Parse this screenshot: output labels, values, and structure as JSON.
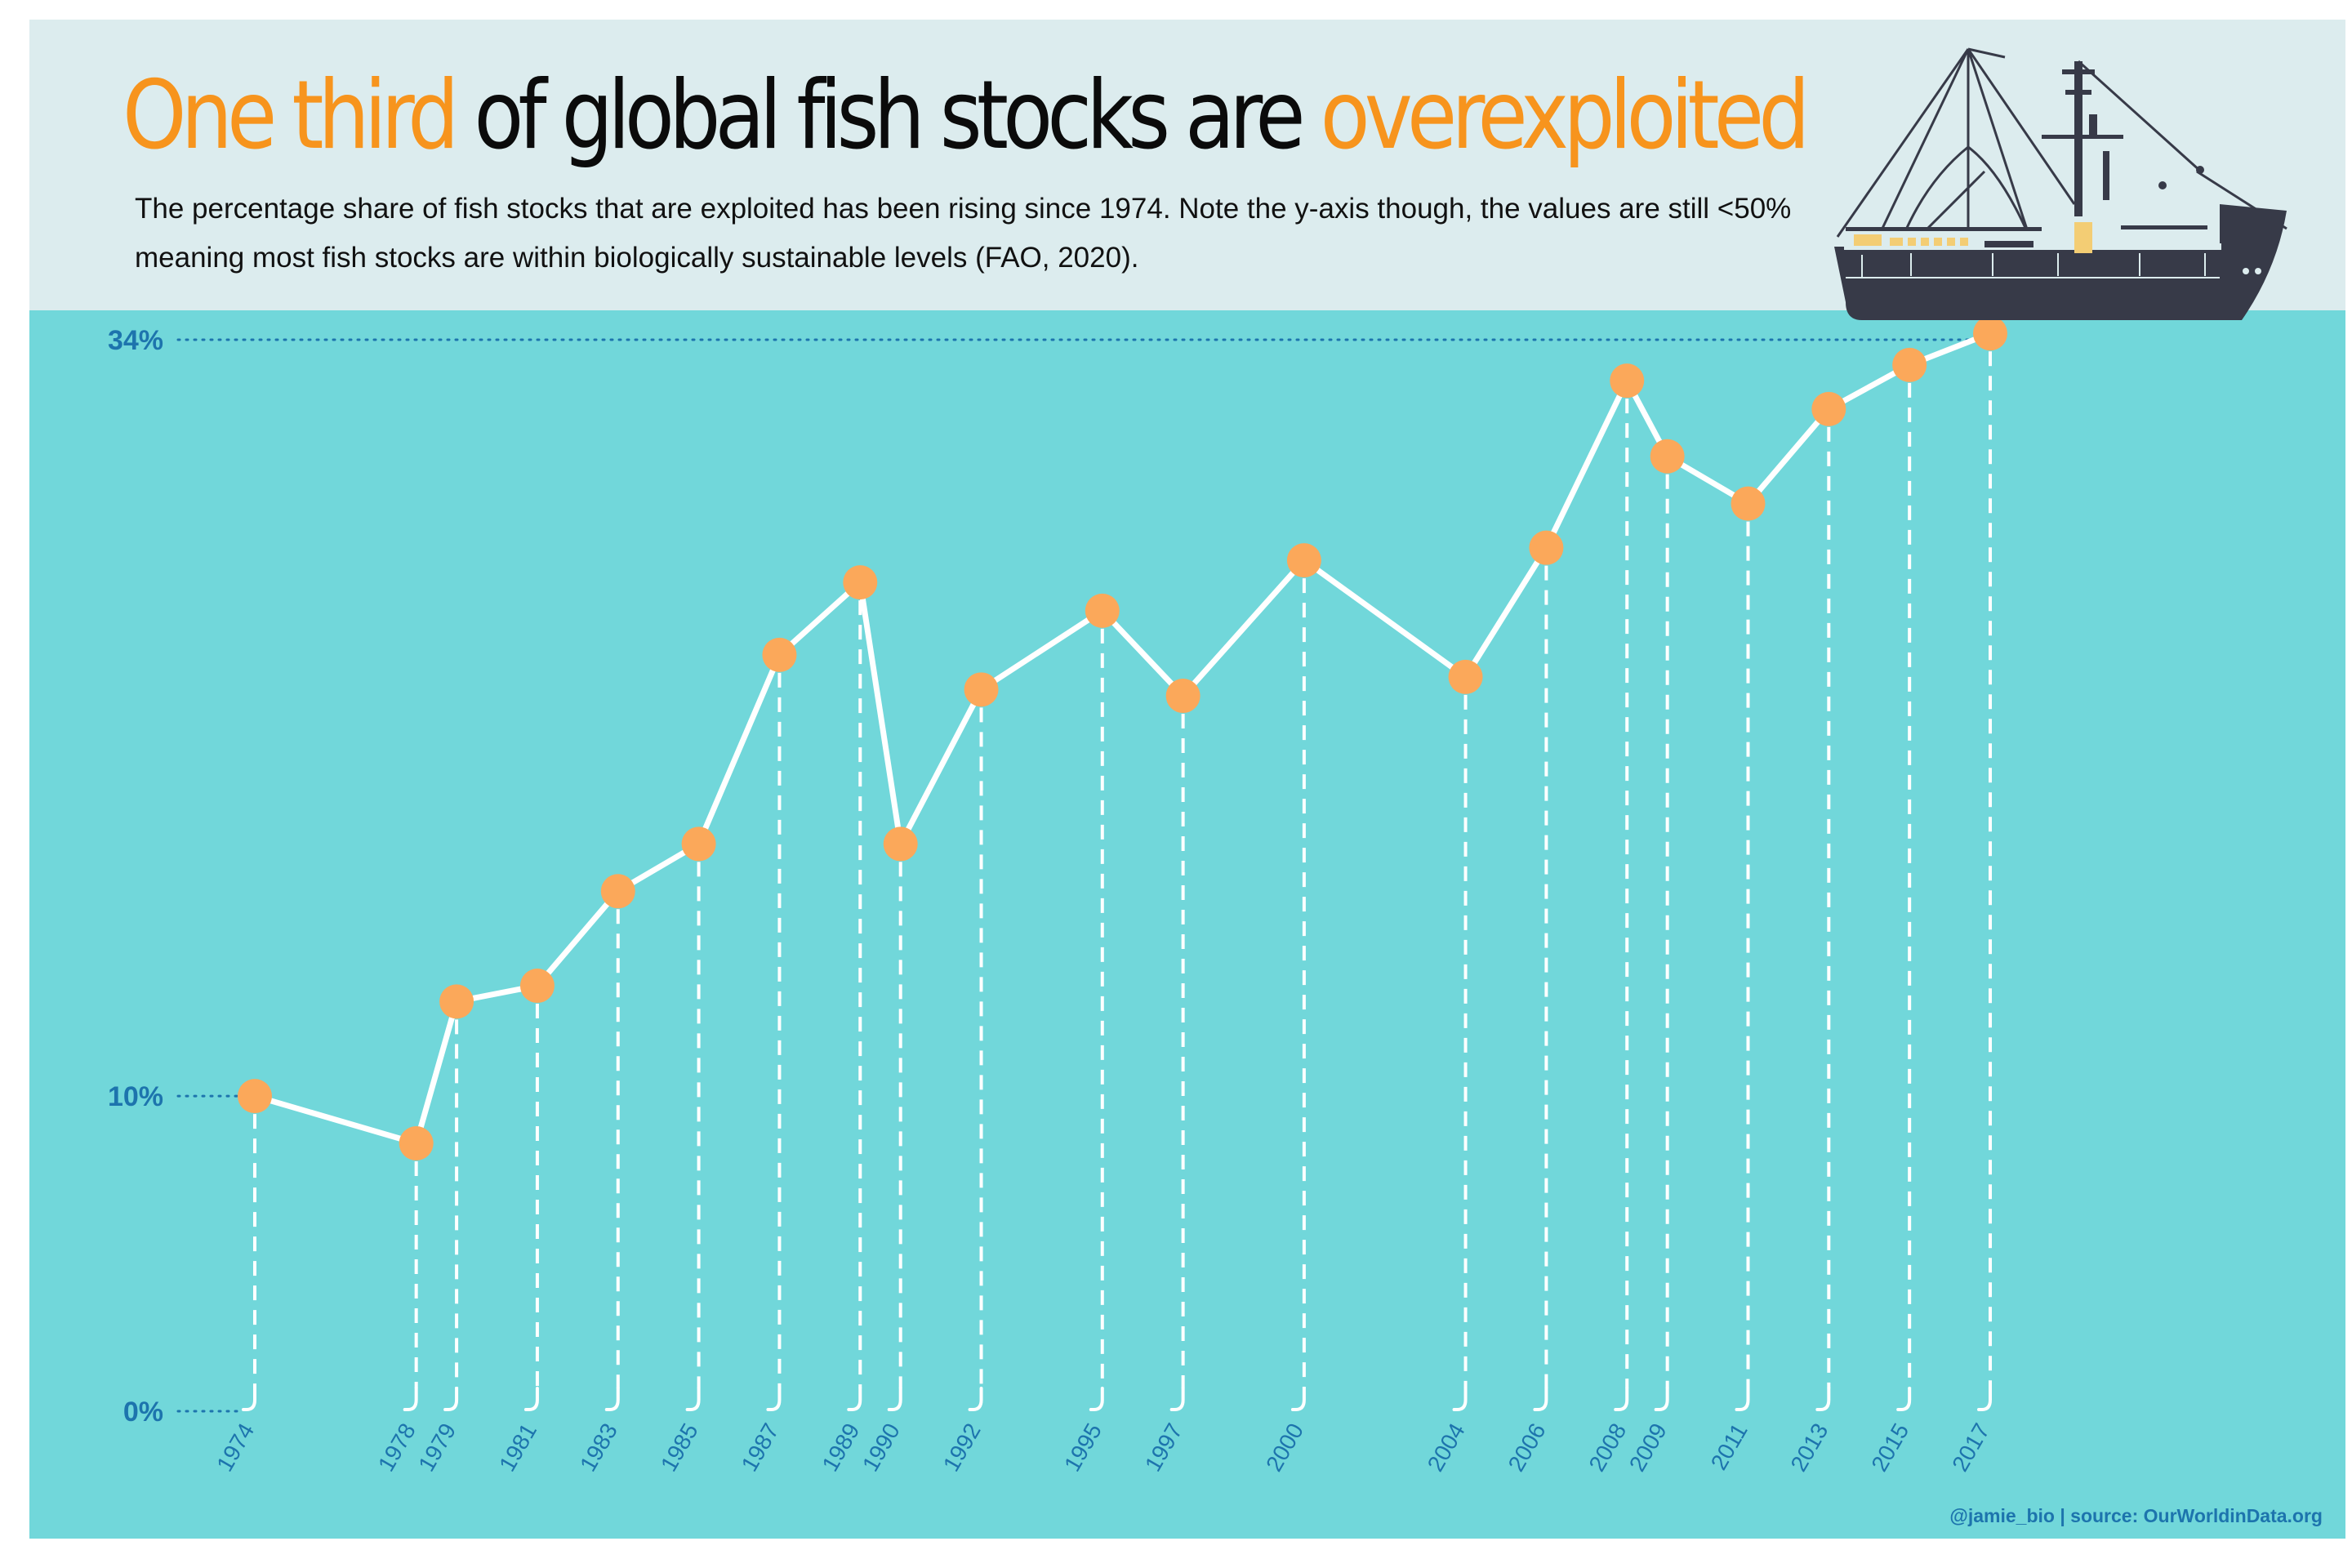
{
  "title": {
    "part1": "One third",
    "part2": " of global fish stocks are ",
    "part3": "overexploited"
  },
  "subtitle": "The percentage share of fish stocks that are exploited has been rising since 1974. Note the y-axis though, the values are still <50% meaning most fish stocks are within biologically sustainable levels (FAO, 2020).",
  "source": "@jamie_bio | source: OurWorldinData.org",
  "colors": {
    "header_bg": "#dcecee",
    "sea_bg": "#71d7da",
    "highlight": "#f7941d",
    "point": "#fba85a",
    "line": "#ffffff",
    "axis_text": "#1d74ad",
    "boat_hull": "#373a48",
    "boat_cabin": "#dcecee",
    "boat_accent": "#f3cd74"
  },
  "illustration": "fishing-boat-icon",
  "chart_data": {
    "type": "line",
    "x": [
      1974,
      1978,
      1979,
      1981,
      1983,
      1985,
      1987,
      1989,
      1990,
      1992,
      1995,
      1997,
      2000,
      2004,
      2006,
      2008,
      2009,
      2011,
      2013,
      2015,
      2017
    ],
    "y": [
      10.0,
      8.5,
      13.0,
      13.5,
      16.5,
      18.0,
      24.0,
      26.3,
      18.0,
      22.9,
      25.4,
      22.7,
      27.0,
      23.3,
      27.4,
      32.7,
      30.3,
      28.8,
      31.8,
      33.2,
      34.2
    ],
    "yticks": [
      {
        "value": 0,
        "label": "0%"
      },
      {
        "value": 10,
        "label": "10%"
      },
      {
        "value": 34,
        "label": "34%"
      }
    ],
    "ylim": [
      0,
      34
    ],
    "xlabel": "",
    "ylabel": "",
    "grid": false,
    "legend": "none"
  }
}
